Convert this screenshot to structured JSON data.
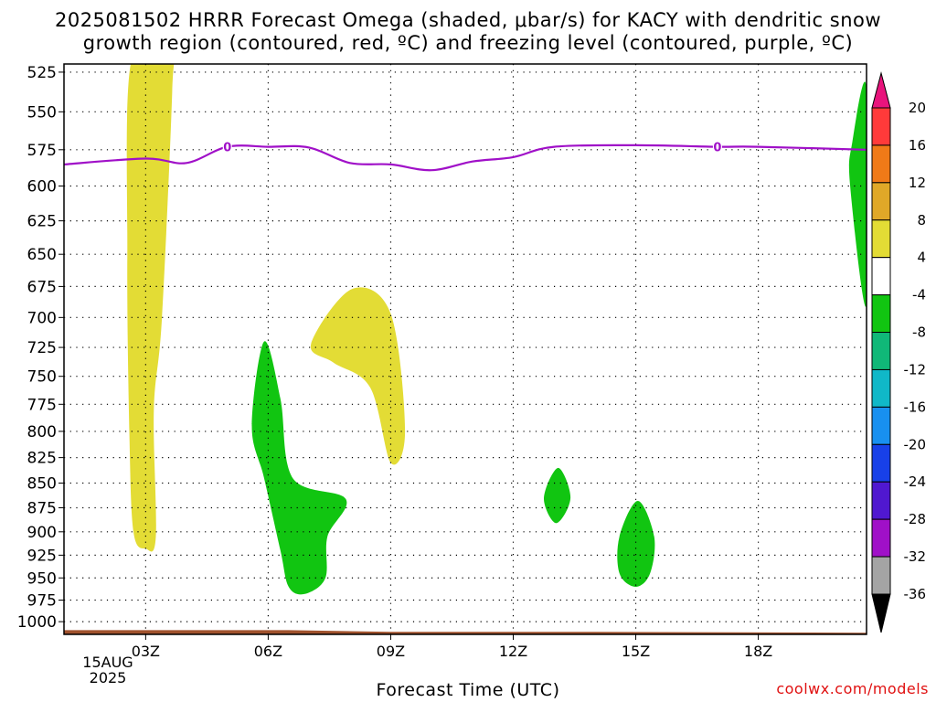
{
  "title_line1": "2025081502 HRRR Forecast Omega (shaded, μbar/s) for KACY with dendritic snow",
  "title_line2": "growth region (contoured, red, ºC) and freezing level (contoured, purple, ºC)",
  "xlabel": "Forecast Time (UTC)",
  "credit": "coolwx.com/models",
  "date_label": {
    "line1": "15AUG",
    "line2": "2025"
  },
  "colors": {
    "yellow": "#e3dc35",
    "green": "#11c511",
    "freezing_line": "#a010c8",
    "ground": "#a0522d"
  },
  "chart_data": {
    "type": "contour-fill",
    "x_unit": "forecast hour (UTC)",
    "x_range": [
      1.0,
      20.65
    ],
    "y_axis": "pressure (hPa)",
    "y_scale": "log",
    "y_range": [
      1015,
      520
    ],
    "x_ticks": [
      {
        "hour": 3,
        "label": "03Z"
      },
      {
        "hour": 6,
        "label": "06Z"
      },
      {
        "hour": 9,
        "label": "09Z"
      },
      {
        "hour": 12,
        "label": "12Z"
      },
      {
        "hour": 15,
        "label": "15Z"
      },
      {
        "hour": 18,
        "label": "18Z"
      }
    ],
    "y_ticks": [
      525,
      550,
      575,
      600,
      625,
      650,
      675,
      700,
      725,
      750,
      775,
      800,
      825,
      850,
      875,
      900,
      925,
      950,
      975,
      1000
    ],
    "grid": true,
    "colorbar": {
      "ticks": [
        "20",
        "16",
        "12",
        "8",
        "4",
        "-4",
        "-8",
        "-12",
        "-16",
        "-20",
        "-24",
        "-28",
        "-32",
        "-36"
      ],
      "colors": [
        "#ff3a3a",
        "#f07a18",
        "#e0a828",
        "#e3dc35",
        "#ffffff",
        "#11c511",
        "#10b878",
        "#10b8c8",
        "#1890f0",
        "#1840e8",
        "#5018d0",
        "#a010c8",
        "#a4a4a4"
      ],
      "top_arrow": "#e8147c",
      "bottom_arrow": "#000000"
    },
    "freezing_level": {
      "label": "0",
      "label_hours": [
        5.0,
        17.0
      ],
      "points": [
        [
          1.0,
          585
        ],
        [
          3.0,
          581
        ],
        [
          4.0,
          584
        ],
        [
          5.0,
          573
        ],
        [
          6.0,
          573
        ],
        [
          7.0,
          573.5
        ],
        [
          8.0,
          584
        ],
        [
          9.0,
          585
        ],
        [
          10.0,
          589
        ],
        [
          11.0,
          583
        ],
        [
          12.0,
          580
        ],
        [
          13.0,
          573
        ],
        [
          15.0,
          572
        ],
        [
          17.0,
          573
        ],
        [
          18.0,
          573
        ],
        [
          20.65,
          575
        ]
      ]
    },
    "regions": [
      {
        "name": "yellow-column",
        "category": "4 to 8",
        "points": [
          [
            2.65,
            518
          ],
          [
            3.6,
            518
          ],
          [
            3.65,
            537
          ],
          [
            3.4,
            700
          ],
          [
            3.2,
            780
          ],
          [
            3.25,
            905
          ],
          [
            3.0,
            918
          ],
          [
            2.7,
            900
          ],
          [
            2.6,
            800
          ],
          [
            2.55,
            650
          ]
        ]
      },
      {
        "name": "yellow-mid",
        "category": "4 to 8",
        "points": [
          [
            7.05,
            722
          ],
          [
            8.05,
            677
          ],
          [
            9.0,
            697
          ],
          [
            9.35,
            800
          ],
          [
            9.0,
            830
          ],
          [
            8.5,
            760
          ],
          [
            7.6,
            738
          ]
        ]
      },
      {
        "name": "green-lower-left",
        "category": "-4 to -8",
        "points": [
          [
            5.6,
            795
          ],
          [
            5.9,
            720
          ],
          [
            6.3,
            770
          ],
          [
            6.6,
            845
          ],
          [
            7.9,
            866
          ],
          [
            7.45,
            905
          ],
          [
            7.4,
            950
          ],
          [
            6.9,
            968
          ],
          [
            6.5,
            960
          ],
          [
            6.3,
            920
          ],
          [
            5.9,
            845
          ]
        ]
      },
      {
        "name": "green-small-13z",
        "category": "-4 to -8",
        "points": [
          [
            13.1,
            835
          ],
          [
            13.4,
            865
          ],
          [
            13.05,
            891
          ],
          [
            12.75,
            865
          ]
        ]
      },
      {
        "name": "green-15z",
        "category": "-4 to -8",
        "points": [
          [
            14.6,
            905
          ],
          [
            15.05,
            868
          ],
          [
            15.45,
            905
          ],
          [
            15.35,
            945
          ],
          [
            15.0,
            960
          ],
          [
            14.6,
            945
          ]
        ]
      },
      {
        "name": "green-right-edge",
        "category": "-4 to -8",
        "points": [
          [
            20.65,
            535
          ],
          [
            20.3,
            570
          ],
          [
            20.25,
            600
          ],
          [
            20.65,
            690
          ]
        ]
      }
    ],
    "ground": {
      "points": [
        [
          1.0,
          1010
        ],
        [
          6.5,
          1010
        ],
        [
          9.0,
          1012
        ],
        [
          14.0,
          1012
        ],
        [
          20.65,
          1013
        ]
      ]
    }
  }
}
